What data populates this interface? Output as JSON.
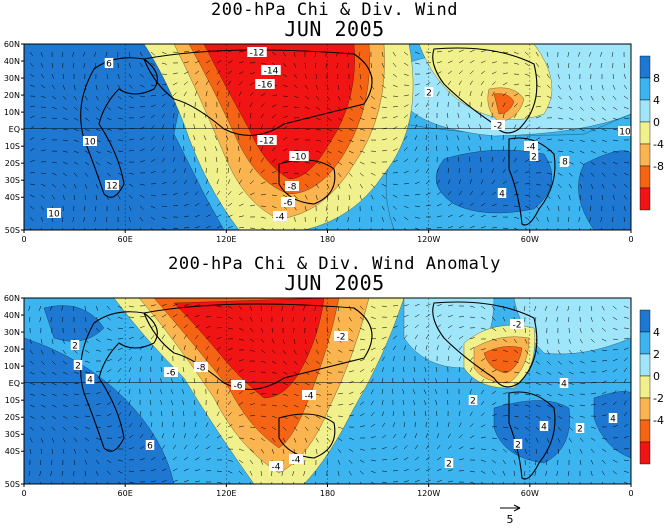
{
  "chart_data": [
    {
      "type": "heatmap",
      "title": "200-hPa Chi & Div. Wind",
      "subtitle": "JUN 2005",
      "x_ticks": [
        "0",
        "60E",
        "120E",
        "180",
        "120W",
        "60W",
        "0"
      ],
      "y_ticks": [
        "60N",
        "40N",
        "30N",
        "20N",
        "10N",
        "EQ",
        "10S",
        "20S",
        "30S",
        "40S",
        "50S"
      ],
      "colorbar": {
        "levels": [
          "8",
          "4",
          "0",
          "-4",
          "-8"
        ],
        "colors": [
          "#1e78d2",
          "#3cb4f0",
          "#a0e6fa",
          "#f0f08c",
          "#fab450",
          "#f56414",
          "#f01414"
        ]
      },
      "contour_labels": [
        "-12",
        "-14",
        "-16",
        "-12",
        "-10",
        "-8",
        "-4",
        "-6",
        "6",
        "10",
        "12",
        "10",
        "8",
        "2",
        "-2",
        "-4",
        "2",
        "4",
        "8",
        "10"
      ]
    },
    {
      "type": "heatmap",
      "title": "200-hPa Chi & Div. Wind Anomaly",
      "subtitle": "JUN 2005",
      "x_ticks": [
        "0",
        "60E",
        "120E",
        "180",
        "120W",
        "60W",
        "0"
      ],
      "y_ticks": [
        "60N",
        "40N",
        "30N",
        "20N",
        "10N",
        "EQ",
        "10S",
        "20S",
        "30S",
        "40S",
        "50S"
      ],
      "colorbar": {
        "levels": [
          "4",
          "2",
          "0",
          "-2",
          "-4"
        ],
        "colors": [
          "#1e78d2",
          "#3cb4f0",
          "#a0e6fa",
          "#f0f08c",
          "#fab450",
          "#f56414",
          "#f01414"
        ]
      },
      "contour_labels": [
        "2",
        "2",
        "4",
        "6",
        "-6",
        "-8",
        "-6",
        "-4",
        "-4",
        "-2",
        "-2",
        "2",
        "4",
        "2",
        "4",
        "2",
        "2",
        "4",
        "-4"
      ],
      "vector_reference": "5"
    }
  ]
}
